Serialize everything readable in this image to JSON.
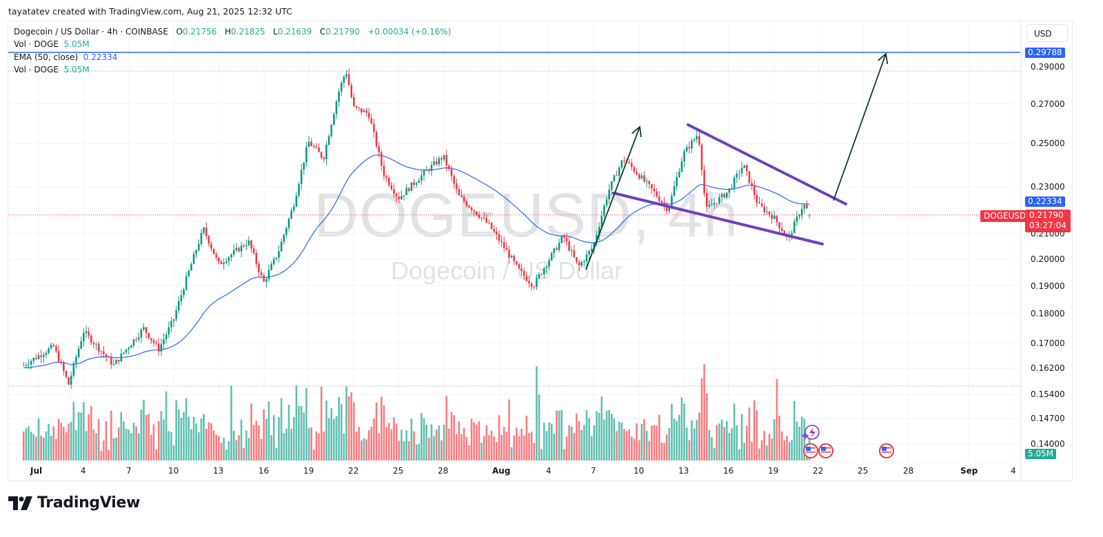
{
  "credit": "tayatatev created with TradingView.com, Aug 21, 2025 12:32 UTC",
  "legend": {
    "symbol_line": "Dogecoin / US Dollar · 4h · COINBASE",
    "o_label": "O",
    "o_value": "0.21756",
    "h_label": "H",
    "h_value": "0.21825",
    "l_label": "L",
    "l_value": "0.21639",
    "c_label": "C",
    "c_value": "0.21790",
    "change": "+0.00034 (+0.16%)",
    "vol_label": "Vol · DOGE",
    "vol_value": "5.05M",
    "ema_label": "EMA (50, close)",
    "ema_value": "0.22334",
    "vol2_label": "Vol · DOGE",
    "vol2_value": "5.05M"
  },
  "watermark": {
    "main": "DOGEUSD, 4h",
    "sub": "Dogecoin / US Dollar"
  },
  "currency_button": "USD",
  "tags": {
    "target": "0.29788",
    "ema": "0.22334",
    "symbol": "DOGEUSD",
    "price": "0.21790",
    "countdown": "03:27:04",
    "volume": "5.05M"
  },
  "colors": {
    "up": "#089981",
    "down": "#f23645",
    "vol_up": "#5fbfb0",
    "vol_down": "#f77c80",
    "ema": "#2962ff",
    "pattern": "#6f3ec0",
    "arrow": "#0c3b2e",
    "target_line": "#2962ff"
  },
  "branding": {
    "logo_text": "TradingView"
  },
  "chart_data": {
    "type": "candlestick",
    "title": "Dogecoin / US Dollar · 4h · COINBASE",
    "symbol": "DOGEUSD",
    "timeframe": "4h",
    "x_ticks": [
      "Jul",
      "4",
      "7",
      "10",
      "13",
      "16",
      "19",
      "22",
      "25",
      "28",
      "Aug",
      "4",
      "7",
      "10",
      "13",
      "16",
      "19",
      "22",
      "25",
      "28",
      "Sep",
      "4"
    ],
    "y_ticks": [
      "0.29000",
      "0.27000",
      "0.25000",
      "0.23000",
      "0.21000",
      "0.20000",
      "0.19000",
      "0.18000",
      "0.17000",
      "0.16200",
      "0.15400",
      "0.14700",
      "0.14000"
    ],
    "y_scale": "log",
    "ylim": [
      0.138,
      0.305
    ],
    "last": {
      "open": 0.21756,
      "high": 0.21825,
      "low": 0.21639,
      "close": 0.2179,
      "change": 0.00034,
      "change_pct": 0.16
    },
    "ema50_last": 0.22334,
    "volume_last": "5.05M",
    "price_path_keypoints": [
      {
        "date": "Jun 30",
        "price": 0.163
      },
      {
        "date": "Jul 2",
        "price": 0.169
      },
      {
        "date": "Jul 3",
        "price": 0.157
      },
      {
        "date": "Jul 4",
        "price": 0.174
      },
      {
        "date": "Jul 6",
        "price": 0.163
      },
      {
        "date": "Jul 8",
        "price": 0.175
      },
      {
        "date": "Jul 9",
        "price": 0.168
      },
      {
        "date": "Jul 10",
        "price": 0.178
      },
      {
        "date": "Jul 11",
        "price": 0.195
      },
      {
        "date": "Jul 12",
        "price": 0.212
      },
      {
        "date": "Jul 13",
        "price": 0.198
      },
      {
        "date": "Jul 15",
        "price": 0.207
      },
      {
        "date": "Jul 16",
        "price": 0.191
      },
      {
        "date": "Jul 17",
        "price": 0.203
      },
      {
        "date": "Jul 18",
        "price": 0.222
      },
      {
        "date": "Jul 19",
        "price": 0.251
      },
      {
        "date": "Jul 20",
        "price": 0.243
      },
      {
        "date": "Jul 21",
        "price": 0.276
      },
      {
        "date": "Jul 21 PM",
        "price": 0.288
      },
      {
        "date": "Jul 22",
        "price": 0.268
      },
      {
        "date": "Jul 23",
        "price": 0.265
      },
      {
        "date": "Jul 24",
        "price": 0.236
      },
      {
        "date": "Jul 25",
        "price": 0.225
      },
      {
        "date": "Jul 27",
        "price": 0.238
      },
      {
        "date": "Jul 28",
        "price": 0.244
      },
      {
        "date": "Jul 29",
        "price": 0.226
      },
      {
        "date": "Jul 31",
        "price": 0.214
      },
      {
        "date": "Aug 2",
        "price": 0.196
      },
      {
        "date": "Aug 3",
        "price": 0.19
      },
      {
        "date": "Aug 5",
        "price": 0.209
      },
      {
        "date": "Aug 6",
        "price": 0.197
      },
      {
        "date": "Aug 7",
        "price": 0.205
      },
      {
        "date": "Aug 8",
        "price": 0.228
      },
      {
        "date": "Aug 9",
        "price": 0.243
      },
      {
        "date": "Aug 11",
        "price": 0.228
      },
      {
        "date": "Aug 12",
        "price": 0.22
      },
      {
        "date": "Aug 13",
        "price": 0.245
      },
      {
        "date": "Aug 14",
        "price": 0.255
      },
      {
        "date": "Aug 14 PM",
        "price": 0.22
      },
      {
        "date": "Aug 16",
        "price": 0.228
      },
      {
        "date": "Aug 17",
        "price": 0.24
      },
      {
        "date": "Aug 18",
        "price": 0.222
      },
      {
        "date": "Aug 19",
        "price": 0.217
      },
      {
        "date": "Aug 20",
        "price": 0.208
      },
      {
        "date": "Aug 21",
        "price": 0.2225
      },
      {
        "date": "Aug 21 PM",
        "price": 0.2179
      }
    ],
    "annotations": [
      {
        "type": "line",
        "name": "falling-wedge-upper",
        "from": {
          "date": "Aug 13",
          "price": 0.259
        },
        "to": {
          "date": "Aug 22",
          "price": 0.225
        },
        "color": "#6f3ec0"
      },
      {
        "type": "line",
        "name": "falling-wedge-lower",
        "from": {
          "date": "Aug 8",
          "price": 0.226
        },
        "to": {
          "date": "Aug 22",
          "price": 0.206
        },
        "color": "#6f3ec0"
      },
      {
        "type": "arrow",
        "name": "prior-breakout-arrow",
        "from": {
          "date": "Aug 6",
          "price": 0.196
        },
        "to": {
          "date": "Aug 10",
          "price": 0.259
        }
      },
      {
        "type": "arrow",
        "name": "projected-breakout-arrow",
        "from": {
          "date": "Aug 22",
          "price": 0.226
        },
        "to": {
          "date": "Aug 26",
          "price": 0.2979
        }
      },
      {
        "type": "hline",
        "name": "target-line",
        "price": 0.29788,
        "color": "#2962ff"
      }
    ]
  }
}
